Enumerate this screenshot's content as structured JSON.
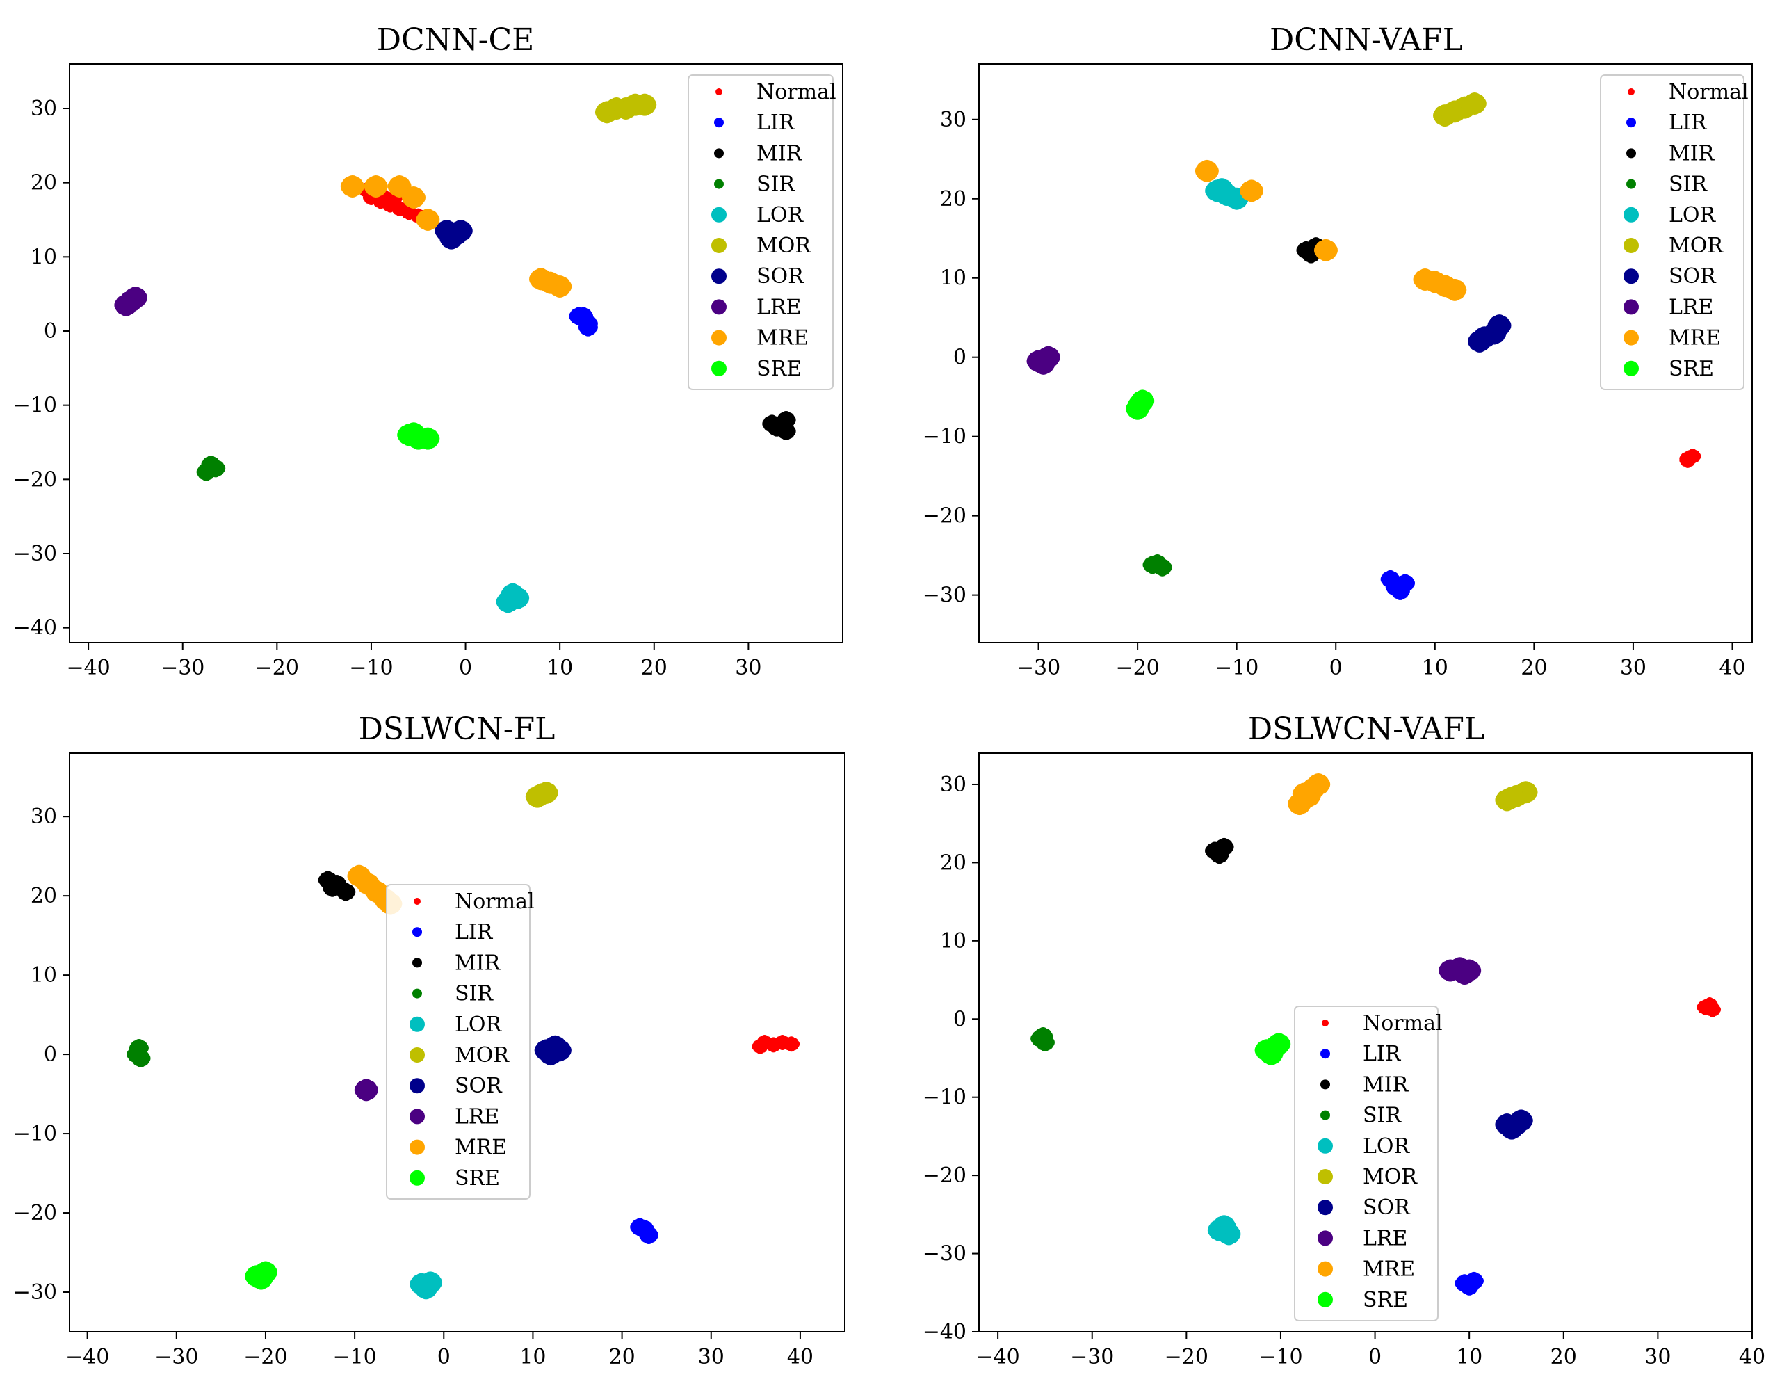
{
  "figure": {
    "legend_entries": [
      "Normal",
      "LIR",
      "MIR",
      "SIR",
      "LOR",
      "MOR",
      "SOR",
      "LRE",
      "MRE",
      "SRE"
    ],
    "class_colors": {
      "Normal": "#ff0000",
      "LIR": "#0000ff",
      "MIR": "#000000",
      "SIR": "#008000",
      "LOR": "#00bfbf",
      "MOR": "#bfbf00",
      "SOR": "#00008b",
      "LRE": "#4b0082",
      "MRE": "#ffa500",
      "SRE": "#00ff00"
    }
  },
  "chart_data": [
    {
      "type": "scatter",
      "title": "DCNN-CE",
      "xlabel": "",
      "ylabel": "",
      "xlim": [
        -42,
        40
      ],
      "ylim": [
        -42,
        36
      ],
      "xticks": [
        -40,
        -30,
        -20,
        -10,
        0,
        10,
        20,
        30
      ],
      "yticks": [
        -40,
        -30,
        -20,
        -10,
        0,
        10,
        20,
        30
      ],
      "legend_position": "top-right",
      "series": [
        {
          "name": "Normal",
          "points": [
            [
              -10.5,
              19
            ],
            [
              -10,
              18
            ],
            [
              -9,
              17.5
            ],
            [
              -8,
              17
            ],
            [
              -7,
              16.5
            ],
            [
              -6,
              16
            ],
            [
              -5,
              15.5
            ],
            [
              -7.5,
              18
            ],
            [
              -9,
              18.5
            ]
          ]
        },
        {
          "name": "LIR",
          "points": [
            [
              12.5,
              2
            ],
            [
              13,
              1
            ],
            [
              13,
              0.5
            ],
            [
              12,
              2
            ]
          ]
        },
        {
          "name": "MIR",
          "points": [
            [
              32.5,
              -12.5
            ],
            [
              34,
              -12
            ],
            [
              33,
              -13
            ],
            [
              34,
              -13.5
            ]
          ]
        },
        {
          "name": "SIR",
          "points": [
            [
              -27,
              -18
            ],
            [
              -27.5,
              -19
            ],
            [
              -26.5,
              -18.5
            ]
          ]
        },
        {
          "name": "LOR",
          "points": [
            [
              5,
              -35.5
            ],
            [
              4.5,
              -36.5
            ],
            [
              5.5,
              -36
            ]
          ]
        },
        {
          "name": "MOR",
          "points": [
            [
              15,
              29.5
            ],
            [
              16,
              30
            ],
            [
              17,
              30
            ],
            [
              18,
              30.5
            ],
            [
              19,
              30.5
            ]
          ]
        },
        {
          "name": "SOR",
          "points": [
            [
              -2,
              13.5
            ],
            [
              -1,
              13
            ],
            [
              -0.5,
              13.5
            ],
            [
              -1.5,
              12.5
            ]
          ]
        },
        {
          "name": "LRE",
          "points": [
            [
              -35.5,
              4
            ],
            [
              -35,
              4.5
            ],
            [
              -36,
              3.5
            ]
          ]
        },
        {
          "name": "MRE",
          "points": [
            [
              -12,
              19.5
            ],
            [
              -9.5,
              19.5
            ],
            [
              -7,
              19.5
            ],
            [
              -5.5,
              18
            ],
            [
              -4,
              15
            ],
            [
              8,
              7
            ],
            [
              9,
              6.5
            ],
            [
              10,
              6
            ]
          ]
        },
        {
          "name": "SRE",
          "points": [
            [
              -6,
              -14
            ],
            [
              -5,
              -14.5
            ],
            [
              -4,
              -14.5
            ],
            [
              -5.5,
              -13.8
            ]
          ]
        }
      ]
    },
    {
      "type": "scatter",
      "title": "DCNN-VAFL",
      "xlabel": "",
      "ylabel": "",
      "xlim": [
        -36,
        42
      ],
      "ylim": [
        -36,
        37
      ],
      "xticks": [
        -30,
        -20,
        -10,
        0,
        10,
        20,
        30,
        40
      ],
      "yticks": [
        -30,
        -20,
        -10,
        0,
        10,
        20,
        30
      ],
      "legend_position": "top-right",
      "series": [
        {
          "name": "Normal",
          "points": [
            [
              35.5,
              -13
            ],
            [
              36,
              -12.5
            ],
            [
              35.5,
              -12.8
            ]
          ]
        },
        {
          "name": "LIR",
          "points": [
            [
              6,
              -29
            ],
            [
              6.5,
              -29.5
            ],
            [
              7,
              -28.5
            ],
            [
              5.5,
              -28
            ]
          ]
        },
        {
          "name": "MIR",
          "points": [
            [
              -3,
              13.5
            ],
            [
              -2,
              14
            ],
            [
              -1,
              13.5
            ],
            [
              -2.5,
              13
            ]
          ]
        },
        {
          "name": "SIR",
          "points": [
            [
              -18,
              -26
            ],
            [
              -17.5,
              -26.5
            ],
            [
              -18.5,
              -26.2
            ]
          ]
        },
        {
          "name": "LOR",
          "points": [
            [
              -12,
              21
            ],
            [
              -11,
              20.5
            ],
            [
              -10,
              20
            ],
            [
              -11.5,
              21.2
            ]
          ]
        },
        {
          "name": "MOR",
          "points": [
            [
              11,
              30.5
            ],
            [
              12,
              31
            ],
            [
              13,
              31.5
            ],
            [
              14,
              32
            ]
          ]
        },
        {
          "name": "SOR",
          "points": [
            [
              15,
              2.5
            ],
            [
              16,
              3
            ],
            [
              16.5,
              4
            ],
            [
              14.5,
              2
            ]
          ]
        },
        {
          "name": "LRE",
          "points": [
            [
              -30,
              -0.5
            ],
            [
              -29,
              0
            ],
            [
              -29.5,
              -0.8
            ]
          ]
        },
        {
          "name": "MRE",
          "points": [
            [
              -13,
              23.5
            ],
            [
              -8.5,
              21
            ],
            [
              -1,
              13.5
            ],
            [
              10,
              9.5
            ],
            [
              11,
              9
            ],
            [
              12,
              8.5
            ],
            [
              9,
              9.8
            ]
          ]
        },
        {
          "name": "SRE",
          "points": [
            [
              -20,
              -6.5
            ],
            [
              -19.5,
              -5.5
            ],
            [
              -19.8,
              -6
            ]
          ]
        }
      ]
    },
    {
      "type": "scatter",
      "title": "DSLWCN-FL",
      "xlabel": "",
      "ylabel": "",
      "xlim": [
        -42,
        45
      ],
      "ylim": [
        -35,
        38
      ],
      "xticks": [
        -40,
        -30,
        -20,
        -10,
        0,
        10,
        20,
        30,
        40
      ],
      "yticks": [
        -30,
        -20,
        -10,
        0,
        10,
        20,
        30
      ],
      "legend_position": "center",
      "series": [
        {
          "name": "Normal",
          "points": [
            [
              36,
              1.5
            ],
            [
              37,
              1.2
            ],
            [
              38,
              1.5
            ],
            [
              39,
              1.3
            ],
            [
              35.5,
              1
            ]
          ]
        },
        {
          "name": "LIR",
          "points": [
            [
              22.5,
              -22
            ],
            [
              23,
              -22.8
            ],
            [
              22,
              -21.8
            ]
          ]
        },
        {
          "name": "MIR",
          "points": [
            [
              -13,
              22
            ],
            [
              -12,
              21.5
            ],
            [
              -11,
              20.5
            ],
            [
              -12.5,
              21
            ]
          ]
        },
        {
          "name": "SIR",
          "points": [
            [
              -34.5,
              0
            ],
            [
              -34,
              -0.5
            ],
            [
              -34.2,
              0.8
            ]
          ]
        },
        {
          "name": "LOR",
          "points": [
            [
              -2.5,
              -29
            ],
            [
              -2,
              -29.5
            ],
            [
              -1.5,
              -28.8
            ]
          ]
        },
        {
          "name": "MOR",
          "points": [
            [
              10.5,
              32.5
            ],
            [
              11.5,
              33
            ],
            [
              11,
              32.8
            ]
          ]
        },
        {
          "name": "SOR",
          "points": [
            [
              11.5,
              0.5
            ],
            [
              12.5,
              1
            ],
            [
              13,
              0.5
            ],
            [
              12,
              0
            ]
          ]
        },
        {
          "name": "LRE",
          "points": [
            [
              -8.7,
              -4.5
            ]
          ]
        },
        {
          "name": "MRE",
          "points": [
            [
              -9.5,
              22.5
            ],
            [
              -8.5,
              21.5
            ],
            [
              -7.5,
              20.5
            ],
            [
              -6.5,
              19.5
            ],
            [
              -6,
              19
            ]
          ]
        },
        {
          "name": "SRE",
          "points": [
            [
              -21,
              -28
            ],
            [
              -20,
              -27.5
            ],
            [
              -20.5,
              -28.3
            ]
          ]
        }
      ]
    },
    {
      "type": "scatter",
      "title": "DSLWCN-VAFL",
      "xlabel": "",
      "ylabel": "",
      "xlim": [
        -42,
        40
      ],
      "ylim": [
        -40,
        34
      ],
      "xticks": [
        -40,
        -30,
        -20,
        -10,
        0,
        10,
        20,
        30,
        40
      ],
      "yticks": [
        -40,
        -30,
        -20,
        -10,
        0,
        10,
        20,
        30
      ],
      "legend_position": "center",
      "series": [
        {
          "name": "Normal",
          "points": [
            [
              35,
              1.5
            ],
            [
              35.5,
              1.8
            ],
            [
              35.8,
              1.2
            ]
          ]
        },
        {
          "name": "LIR",
          "points": [
            [
              9.5,
              -33.8
            ],
            [
              10,
              -34.2
            ],
            [
              10.5,
              -33.5
            ]
          ]
        },
        {
          "name": "MIR",
          "points": [
            [
              -17,
              21.5
            ],
            [
              -16,
              22
            ],
            [
              -16.5,
              21
            ]
          ]
        },
        {
          "name": "SIR",
          "points": [
            [
              -35.5,
              -2.5
            ],
            [
              -35,
              -3
            ],
            [
              -35.2,
              -2.2
            ]
          ]
        },
        {
          "name": "LOR",
          "points": [
            [
              -16.5,
              -27
            ],
            [
              -15.5,
              -27.5
            ],
            [
              -16,
              -26.5
            ]
          ]
        },
        {
          "name": "MOR",
          "points": [
            [
              14,
              28
            ],
            [
              15,
              28.5
            ],
            [
              16,
              29
            ],
            [
              14.5,
              28.3
            ]
          ]
        },
        {
          "name": "SOR",
          "points": [
            [
              14,
              -13.5
            ],
            [
              15,
              -13.5
            ],
            [
              15.5,
              -13
            ],
            [
              14.5,
              -14
            ]
          ]
        },
        {
          "name": "LRE",
          "points": [
            [
              8,
              6.2
            ],
            [
              9,
              6.5
            ],
            [
              10,
              6.2
            ],
            [
              9.5,
              5.8
            ]
          ]
        },
        {
          "name": "MRE",
          "points": [
            [
              -8,
              27.5
            ],
            [
              -7,
              28.5
            ],
            [
              -6.5,
              29.5
            ],
            [
              -6,
              30
            ],
            [
              -7.5,
              28.8
            ]
          ]
        },
        {
          "name": "SRE",
          "points": [
            [
              -11.5,
              -4
            ],
            [
              -10.5,
              -3.5
            ],
            [
              -11,
              -4.5
            ],
            [
              -10.2,
              -3.2
            ]
          ]
        }
      ]
    }
  ]
}
